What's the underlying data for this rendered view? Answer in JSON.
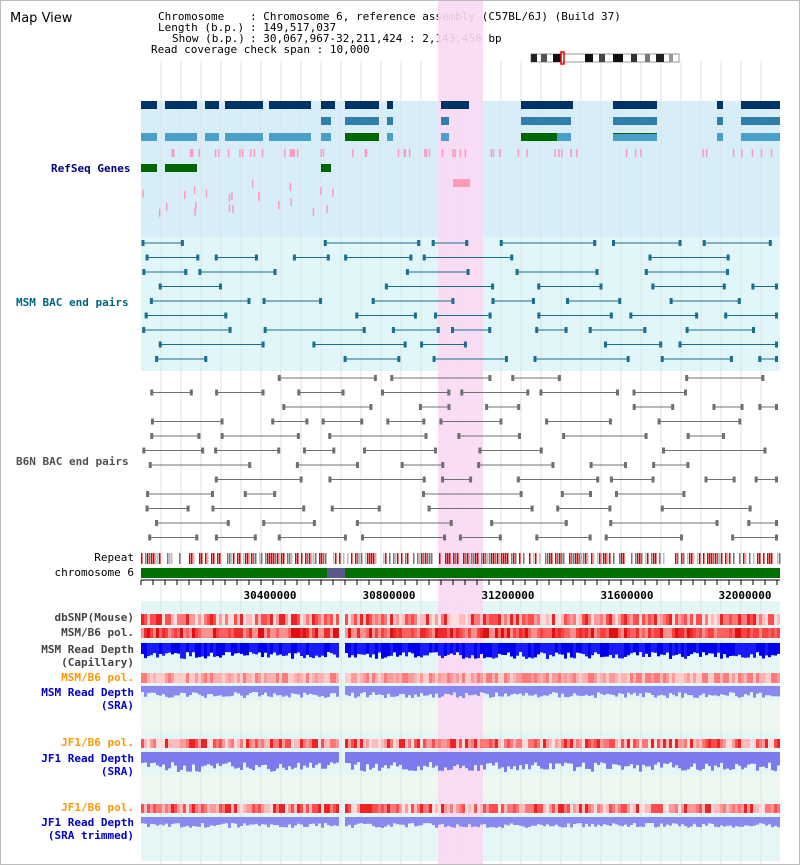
{
  "page": {
    "title": "Map View"
  },
  "header": {
    "chromosome_key": "Chromosome",
    "chromosome_val": "Chromosome 6, reference assembly (C57BL/6J) (Build 37)",
    "length_key": "Length (b.p.)",
    "length_val": "149,517,037",
    "show_key": "Show (b.p.)",
    "show_val": "30,067,967-32,211,424 : 2,143,458 bp",
    "coverage_key": "Read coverage check span",
    "coverage_val": "10,000"
  },
  "tracks": {
    "refseq": "RefSeq Genes",
    "msm_bac": "MSM BAC end pairs",
    "b6n_bac": "B6N BAC end pairs",
    "repeat": "Repeat",
    "chromosome": "chromosome 6",
    "dbsnp": "dbSNP(Mouse)",
    "msm_b6_pol": "MSM/B6 pol.",
    "msm_depth_cap_1": "MSM Read Depth",
    "msm_depth_cap_2": "(Capillary)",
    "msm_b6_pol_2": "MSM/B6 pol.",
    "msm_depth_sra_1": "MSM Read Depth",
    "msm_depth_sra_2": "(SRA)",
    "jf1_b6_pol": "JF1/B6 pol.",
    "jf1_depth_sra_1": "JF1 Read Depth",
    "jf1_depth_sra_2": "(SRA)",
    "jf1_b6_pol_2": "JF1/B6 pol.",
    "jf1_depth_trim_1": "JF1 Read Depth",
    "jf1_depth_trim_2": "(SRA trimmed)"
  },
  "axis": {
    "ticks": [
      "30400000",
      "30800000",
      "31200000",
      "31600000",
      "32000000"
    ]
  },
  "colors": {
    "refseq_label": "#000080",
    "msm_label": "#006680",
    "b6n_label": "#505050",
    "pol_label": "#ff9900",
    "depth_label": "#0000cc",
    "highlight": "#f9d9f3"
  }
}
